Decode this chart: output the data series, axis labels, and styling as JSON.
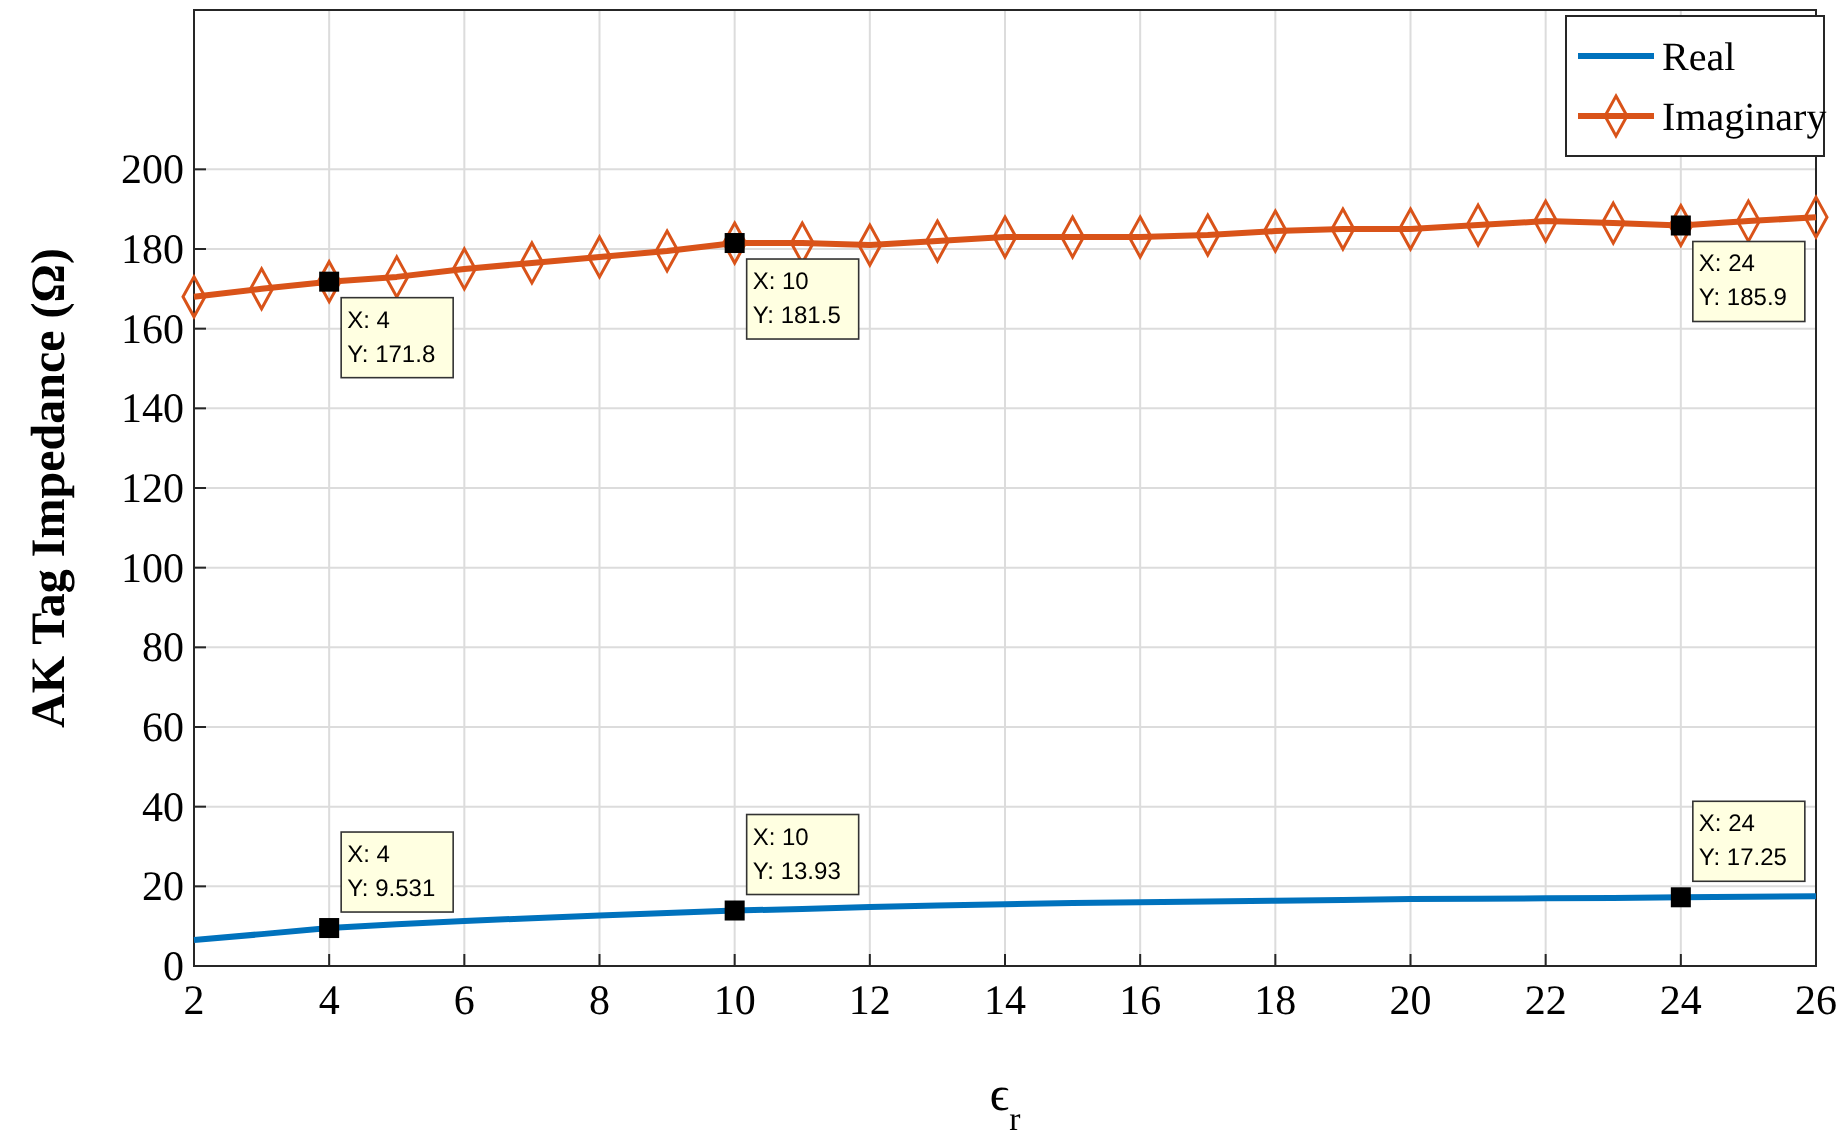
{
  "chart_data": {
    "type": "line",
    "xlabel": "ϵ$_{r}$",
    "ylabel": "AK Tag Impedance (Ω)",
    "x": [
      2,
      3,
      4,
      5,
      6,
      7,
      8,
      9,
      10,
      11,
      12,
      13,
      14,
      15,
      16,
      17,
      18,
      19,
      20,
      21,
      22,
      23,
      24,
      25,
      26
    ],
    "series": [
      {
        "name": "Real",
        "color": "#0072bd",
        "marker": "none",
        "values": [
          6.5,
          8,
          9.531,
          10.5,
          11.3,
          12,
          12.7,
          13.3,
          13.93,
          14.3,
          14.8,
          15.2,
          15.5,
          15.8,
          16,
          16.2,
          16.4,
          16.6,
          16.8,
          16.9,
          17,
          17.1,
          17.25,
          17.4,
          17.5
        ]
      },
      {
        "name": "Imaginary",
        "color": "#d95319",
        "marker": "diamond",
        "values": [
          168,
          170,
          171.8,
          173,
          175,
          176.5,
          178,
          179.5,
          181.5,
          181.5,
          181,
          182,
          183,
          183,
          183,
          183.5,
          184.5,
          185,
          185,
          186,
          187,
          186.5,
          185.9,
          187,
          188
        ]
      }
    ],
    "xlim": [
      2,
      26
    ],
    "xticks": [
      2,
      4,
      6,
      8,
      10,
      12,
      14,
      16,
      18,
      20,
      22,
      24,
      26
    ],
    "ylim": [
      0,
      240
    ],
    "yticks": [
      0,
      20,
      40,
      60,
      80,
      100,
      120,
      140,
      160,
      180,
      200
    ],
    "grid": true,
    "legend": "top right",
    "line_style": "solid",
    "annotations": [
      {
        "text": "X: 4\nY: 171.8",
        "x": 4,
        "y": 171.8
      },
      {
        "text": "X: 10\nY: 181.5",
        "x": 10,
        "y": 181.5
      },
      {
        "text": "X: 24\nY: 185.9",
        "x": 24,
        "y": 185.9
      },
      {
        "text": "X: 4\nY: 9.531",
        "x": 4,
        "y": 9.531
      },
      {
        "text": "X: 10\nY: 13.93",
        "x": 10,
        "y": 13.93
      },
      {
        "text": "X: 24\nY: 17.25",
        "x": 24,
        "y": 17.25
      }
    ]
  }
}
